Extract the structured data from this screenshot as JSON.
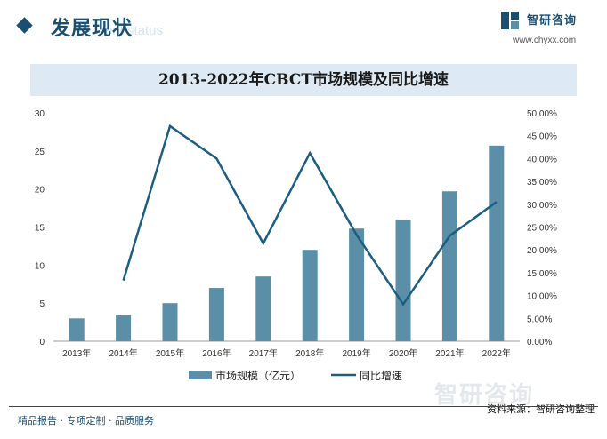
{
  "header": {
    "section_title": "发展现状",
    "section_subtitle": "ent status",
    "brand_name": "智研咨询",
    "brand_url": "www.chyxx.com"
  },
  "footer": {
    "left": "精品报告 · 专项定制 · 品质服务",
    "source": "资料来源：智研咨询整理",
    "watermark": "智研咨询"
  },
  "colors": {
    "bar": "#5b8fa8",
    "line": "#1b5e80",
    "title_bg": "#dde9f3",
    "accent": "#1b4f72"
  },
  "chart_data": {
    "type": "bar",
    "title": "2013-2022年CBCT市场规模及同比增速",
    "categories": [
      "2013年",
      "2014年",
      "2015年",
      "2016年",
      "2017年",
      "2018年",
      "2019年",
      "2020年",
      "2021年",
      "2022年"
    ],
    "series": [
      {
        "name": "市场规模（亿元）",
        "type": "bar",
        "axis": "left",
        "values": [
          3.0,
          3.4,
          5.0,
          7.0,
          8.5,
          12.0,
          14.8,
          16.0,
          19.7,
          25.7
        ]
      },
      {
        "name": "同比增速",
        "type": "line",
        "axis": "right",
        "values": [
          null,
          13.3,
          47.1,
          40.0,
          21.4,
          41.2,
          23.3,
          8.1,
          23.1,
          30.5
        ]
      }
    ],
    "y_left": {
      "min": 0,
      "max": 30,
      "ticks": [
        "0",
        "5",
        "10",
        "15",
        "20",
        "25",
        "30"
      ]
    },
    "y_right": {
      "min": 0,
      "max": 50,
      "ticks": [
        "0.00%",
        "5.00%",
        "10.00%",
        "15.00%",
        "20.00%",
        "25.00%",
        "30.00%",
        "35.00%",
        "40.00%",
        "45.00%",
        "50.00%"
      ]
    },
    "grid": false,
    "legend_position": "bottom"
  }
}
